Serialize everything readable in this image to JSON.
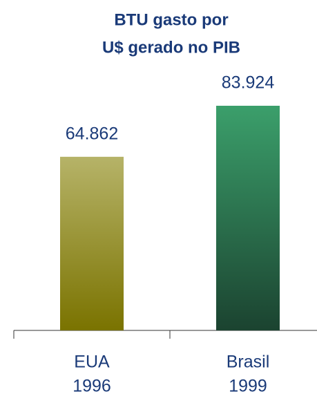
{
  "chart_data": {
    "type": "bar",
    "title": [
      "BTU gasto por",
      "U$ gerado no PIB"
    ],
    "categories": [
      [
        "EUA",
        "1996"
      ],
      [
        "Brasil",
        "1999"
      ]
    ],
    "values": [
      64862,
      83924
    ],
    "value_labels": [
      "64.862",
      "83.924"
    ],
    "colors": [
      [
        "#b6b368",
        "#7a7300"
      ],
      [
        "#3b9f6b",
        "#1b4330"
      ]
    ]
  }
}
